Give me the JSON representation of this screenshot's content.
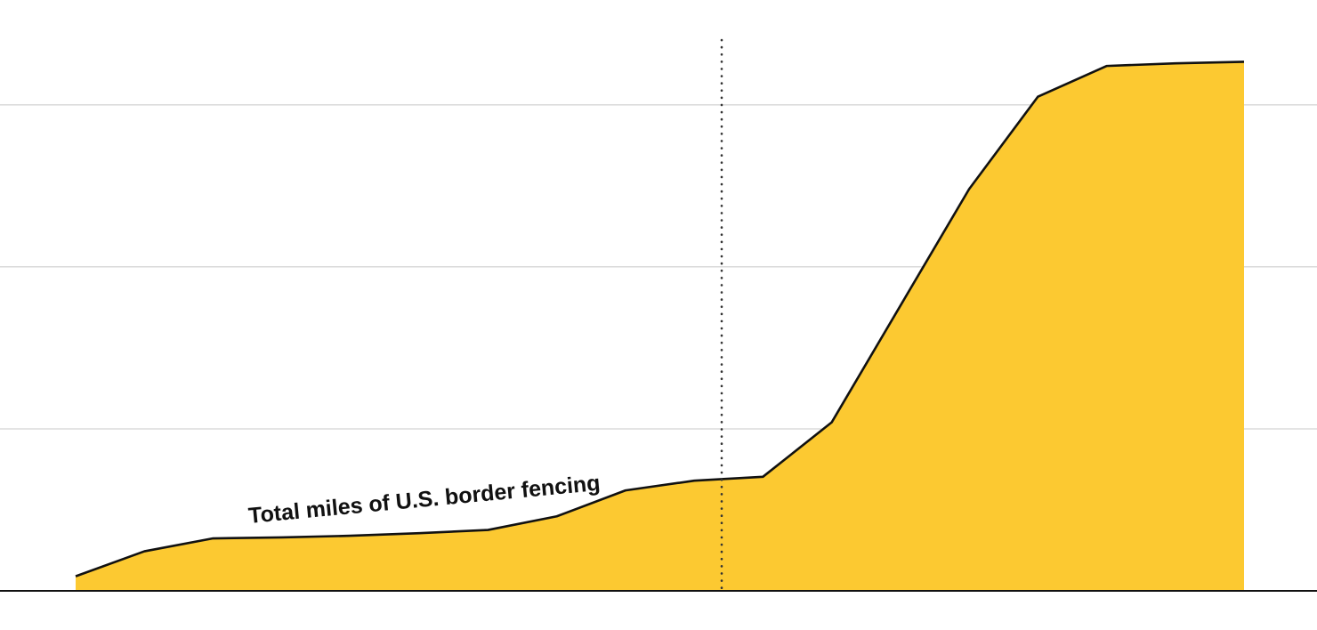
{
  "chart_data": {
    "type": "area",
    "title": "",
    "xlabel": "",
    "ylabel": "",
    "x": [
      1,
      2,
      3,
      4,
      5,
      6,
      7,
      8,
      9,
      10,
      11,
      12,
      13,
      14,
      15,
      16,
      17,
      18
    ],
    "series": [
      {
        "name": "Total miles of U.S. border fencing",
        "values": [
          45,
          122,
          162,
          165,
          170,
          178,
          188,
          230,
          310,
          340,
          352,
          520,
          880,
          1240,
          1525,
          1620,
          1628,
          1633
        ]
      }
    ],
    "ylim": [
      0,
      1700
    ],
    "gridlines": [
      500,
      1000,
      1500
    ],
    "marker_x": 10.4,
    "grid": true,
    "legend": "inline label",
    "colors": {
      "area_fill": "#FCC931",
      "line": "#111111",
      "grid": "#c8c8c8",
      "axis": "#111111",
      "marker": "#333333"
    }
  }
}
